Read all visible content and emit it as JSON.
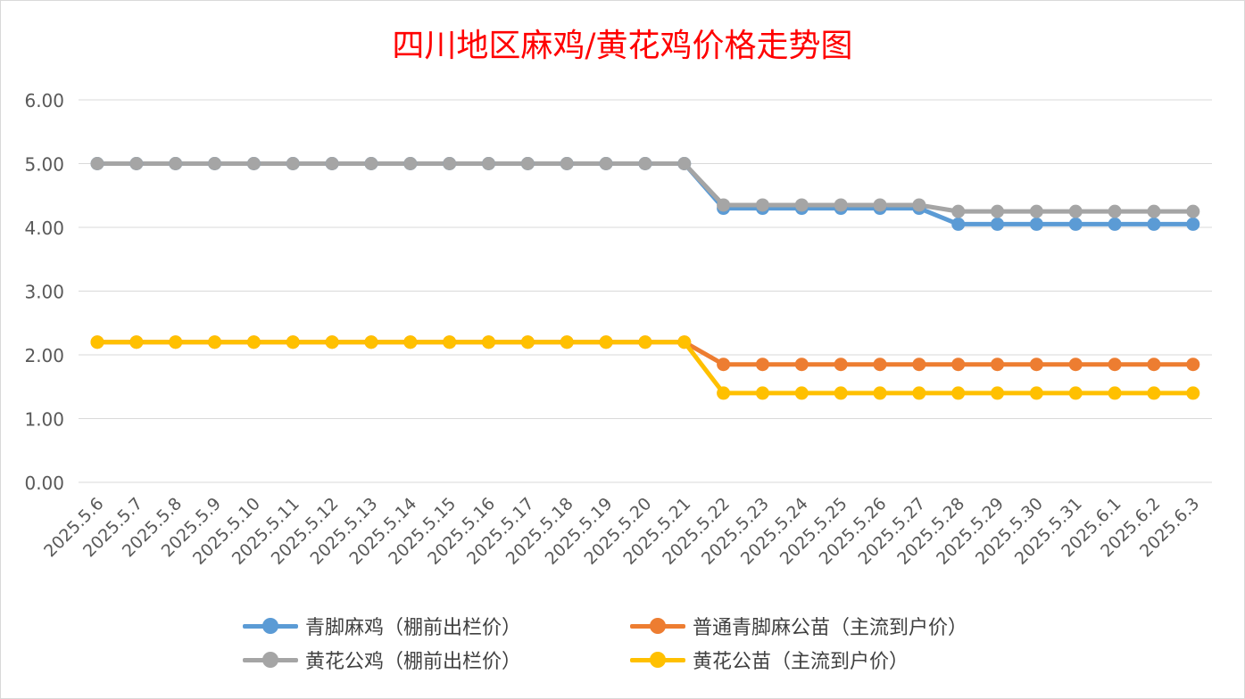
{
  "chart_data": {
    "type": "line",
    "title": "四川地区麻鸡/黄花鸡价格走势图",
    "xlabel": "",
    "ylabel": "",
    "ylim": [
      0,
      6
    ],
    "yticks": [
      "0.00",
      "1.00",
      "2.00",
      "3.00",
      "4.00",
      "5.00",
      "6.00"
    ],
    "grid": true,
    "legend_position": "bottom",
    "categories": [
      "2025.5.6",
      "2025.5.7",
      "2025.5.8",
      "2025.5.9",
      "2025.5.10",
      "2025.5.11",
      "2025.5.12",
      "2025.5.13",
      "2025.5.14",
      "2025.5.15",
      "2025.5.16",
      "2025.5.17",
      "2025.5.18",
      "2025.5.19",
      "2025.5.20",
      "2025.5.21",
      "2025.5.22",
      "2025.5.23",
      "2025.5.24",
      "2025.5.25",
      "2025.5.26",
      "2025.5.27",
      "2025.5.28",
      "2025.5.29",
      "2025.5.30",
      "2025.5.31",
      "2025.6.1",
      "2025.6.2",
      "2025.6.3"
    ],
    "series": [
      {
        "name": "青脚麻鸡（棚前出栏价）",
        "color": "#5b9bd5",
        "values": [
          5.0,
          5.0,
          5.0,
          5.0,
          5.0,
          5.0,
          5.0,
          5.0,
          5.0,
          5.0,
          5.0,
          5.0,
          5.0,
          5.0,
          5.0,
          5.0,
          4.3,
          4.3,
          4.3,
          4.3,
          4.3,
          4.3,
          4.05,
          4.05,
          4.05,
          4.05,
          4.05,
          4.05,
          4.05
        ]
      },
      {
        "name": "普通青脚麻公苗（主流到户价）",
        "color": "#ed7d31",
        "values": [
          2.2,
          2.2,
          2.2,
          2.2,
          2.2,
          2.2,
          2.2,
          2.2,
          2.2,
          2.2,
          2.2,
          2.2,
          2.2,
          2.2,
          2.2,
          2.2,
          1.85,
          1.85,
          1.85,
          1.85,
          1.85,
          1.85,
          1.85,
          1.85,
          1.85,
          1.85,
          1.85,
          1.85,
          1.85
        ]
      },
      {
        "name": "黄花公鸡（棚前出栏价）",
        "color": "#a5a5a5",
        "values": [
          5.0,
          5.0,
          5.0,
          5.0,
          5.0,
          5.0,
          5.0,
          5.0,
          5.0,
          5.0,
          5.0,
          5.0,
          5.0,
          5.0,
          5.0,
          5.0,
          4.35,
          4.35,
          4.35,
          4.35,
          4.35,
          4.35,
          4.25,
          4.25,
          4.25,
          4.25,
          4.25,
          4.25,
          4.25
        ]
      },
      {
        "name": "黄花公苗（主流到户价）",
        "color": "#ffc000",
        "values": [
          2.2,
          2.2,
          2.2,
          2.2,
          2.2,
          2.2,
          2.2,
          2.2,
          2.2,
          2.2,
          2.2,
          2.2,
          2.2,
          2.2,
          2.2,
          2.2,
          1.4,
          1.4,
          1.4,
          1.4,
          1.4,
          1.4,
          1.4,
          1.4,
          1.4,
          1.4,
          1.4,
          1.4,
          1.4
        ]
      }
    ]
  }
}
